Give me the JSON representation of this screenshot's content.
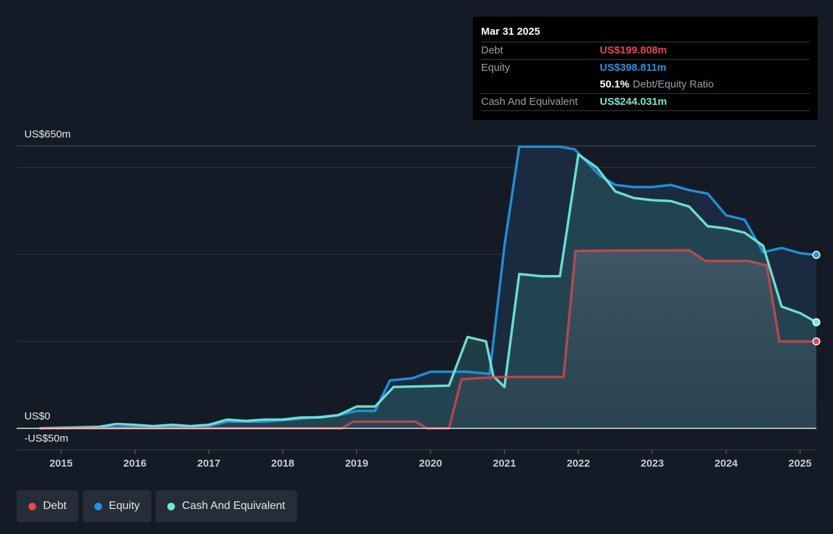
{
  "tooltip": {
    "date": "Mar 31 2025",
    "debt_label": "Debt",
    "debt_value": "US$199.808m",
    "equity_label": "Equity",
    "equity_value": "US$398.811m",
    "ratio_value": "50.1%",
    "ratio_label": "Debt/Equity Ratio",
    "cash_label": "Cash And Equivalent",
    "cash_value": "US$244.031m"
  },
  "colors": {
    "debt": "#e64650",
    "equity": "#2394df",
    "cash": "#71e7d6",
    "background": "#151b26"
  },
  "legend": [
    {
      "label": "Debt",
      "color": "#e64650"
    },
    {
      "label": "Equity",
      "color": "#2394df"
    },
    {
      "label": "Cash And Equivalent",
      "color": "#71e7d6"
    }
  ],
  "chart_data": {
    "type": "area",
    "y_labels": {
      "top": "US$650m",
      "zero": "US$0",
      "bottom": "-US$50m"
    },
    "x_ticks": [
      "2015",
      "2016",
      "2017",
      "2018",
      "2019",
      "2020",
      "2021",
      "2022",
      "2023",
      "2024",
      "2025"
    ],
    "ylim": [
      -50,
      650
    ],
    "xlim": [
      2014.4,
      2025.22
    ],
    "grid": true,
    "legend_position": "bottom-left",
    "series": [
      {
        "name": "Debt",
        "color": "#e64650",
        "points": [
          [
            2014.71,
            0
          ],
          [
            2015.5,
            0
          ],
          [
            2016.5,
            0
          ],
          [
            2017.5,
            0
          ],
          [
            2018.8,
            0
          ],
          [
            2018.95,
            15
          ],
          [
            2019.8,
            15
          ],
          [
            2019.95,
            0
          ],
          [
            2020.25,
            0
          ],
          [
            2020.42,
            113
          ],
          [
            2020.92,
            118
          ],
          [
            2021.8,
            118
          ],
          [
            2021.96,
            408
          ],
          [
            2022.5,
            409
          ],
          [
            2023.5,
            410
          ],
          [
            2023.72,
            385
          ],
          [
            2024.3,
            385
          ],
          [
            2024.55,
            375
          ],
          [
            2024.72,
            200
          ],
          [
            2025.22,
            200
          ]
        ]
      },
      {
        "name": "Equity",
        "color": "#2394df",
        "points": [
          [
            2014.71,
            0
          ],
          [
            2015.5,
            2
          ],
          [
            2016.0,
            3
          ],
          [
            2016.5,
            4
          ],
          [
            2017.0,
            5
          ],
          [
            2017.25,
            15
          ],
          [
            2017.75,
            15
          ],
          [
            2018.25,
            22
          ],
          [
            2018.75,
            30
          ],
          [
            2019.0,
            40
          ],
          [
            2019.25,
            40
          ],
          [
            2019.45,
            110
          ],
          [
            2019.75,
            115
          ],
          [
            2020.0,
            130
          ],
          [
            2020.5,
            130
          ],
          [
            2020.8,
            125
          ],
          [
            2021.0,
            420
          ],
          [
            2021.2,
            648
          ],
          [
            2021.75,
            648
          ],
          [
            2021.95,
            642
          ],
          [
            2022.3,
            580
          ],
          [
            2022.5,
            560
          ],
          [
            2022.75,
            555
          ],
          [
            2023.0,
            555
          ],
          [
            2023.25,
            560
          ],
          [
            2023.5,
            548
          ],
          [
            2023.75,
            540
          ],
          [
            2024.0,
            490
          ],
          [
            2024.25,
            480
          ],
          [
            2024.5,
            405
          ],
          [
            2024.75,
            415
          ],
          [
            2025.0,
            403
          ],
          [
            2025.22,
            399
          ]
        ]
      },
      {
        "name": "Cash And Equivalent",
        "color": "#71e7d6",
        "points": [
          [
            2014.71,
            0
          ],
          [
            2015.5,
            3
          ],
          [
            2015.75,
            10
          ],
          [
            2016.0,
            8
          ],
          [
            2016.25,
            5
          ],
          [
            2016.5,
            8
          ],
          [
            2016.75,
            5
          ],
          [
            2017.0,
            8
          ],
          [
            2017.25,
            20
          ],
          [
            2017.5,
            17
          ],
          [
            2017.75,
            20
          ],
          [
            2018.0,
            20
          ],
          [
            2018.25,
            25
          ],
          [
            2018.5,
            25
          ],
          [
            2018.75,
            30
          ],
          [
            2019.0,
            50
          ],
          [
            2019.25,
            50
          ],
          [
            2019.5,
            95
          ],
          [
            2019.75,
            96
          ],
          [
            2020.0,
            97
          ],
          [
            2020.25,
            98
          ],
          [
            2020.5,
            210
          ],
          [
            2020.75,
            200
          ],
          [
            2020.85,
            120
          ],
          [
            2021.0,
            95
          ],
          [
            2021.2,
            355
          ],
          [
            2021.5,
            350
          ],
          [
            2021.75,
            350
          ],
          [
            2022.0,
            630
          ],
          [
            2022.25,
            600
          ],
          [
            2022.5,
            545
          ],
          [
            2022.75,
            530
          ],
          [
            2023.0,
            525
          ],
          [
            2023.25,
            523
          ],
          [
            2023.5,
            510
          ],
          [
            2023.75,
            465
          ],
          [
            2024.0,
            460
          ],
          [
            2024.25,
            450
          ],
          [
            2024.5,
            420
          ],
          [
            2024.75,
            280
          ],
          [
            2025.0,
            265
          ],
          [
            2025.22,
            244
          ]
        ]
      }
    ]
  }
}
